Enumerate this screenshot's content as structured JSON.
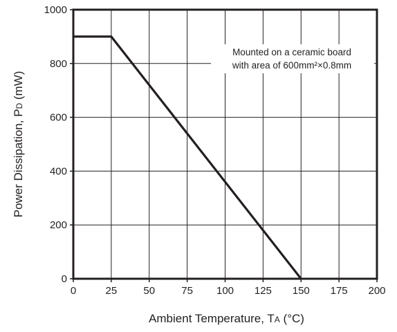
{
  "chart_data": {
    "type": "line",
    "xlabel_main": "Ambient Temperature, T",
    "xlabel_sub": "A",
    "xlabel_unit": " (°C)",
    "ylabel_main": "Power Dissipation, P",
    "ylabel_sub": "D",
    "ylabel_unit": " (mW)",
    "xlim": [
      0,
      200
    ],
    "ylim": [
      0,
      1000
    ],
    "x_ticks": [
      "0",
      "25",
      "50",
      "75",
      "100",
      "125",
      "150",
      "175",
      "200"
    ],
    "y_ticks": [
      "0",
      "200",
      "400",
      "600",
      "800",
      "1000"
    ],
    "grid": true,
    "series": [
      {
        "x": [
          0,
          25,
          150
        ],
        "y": [
          900,
          900,
          0
        ]
      }
    ],
    "annotation": {
      "line1": "Mounted on a ceramic board",
      "line2": "with area of 600mm²×0.8mm"
    },
    "colors": {
      "line": "#231f20",
      "grid": "#231f20",
      "frame": "#231f20"
    }
  }
}
